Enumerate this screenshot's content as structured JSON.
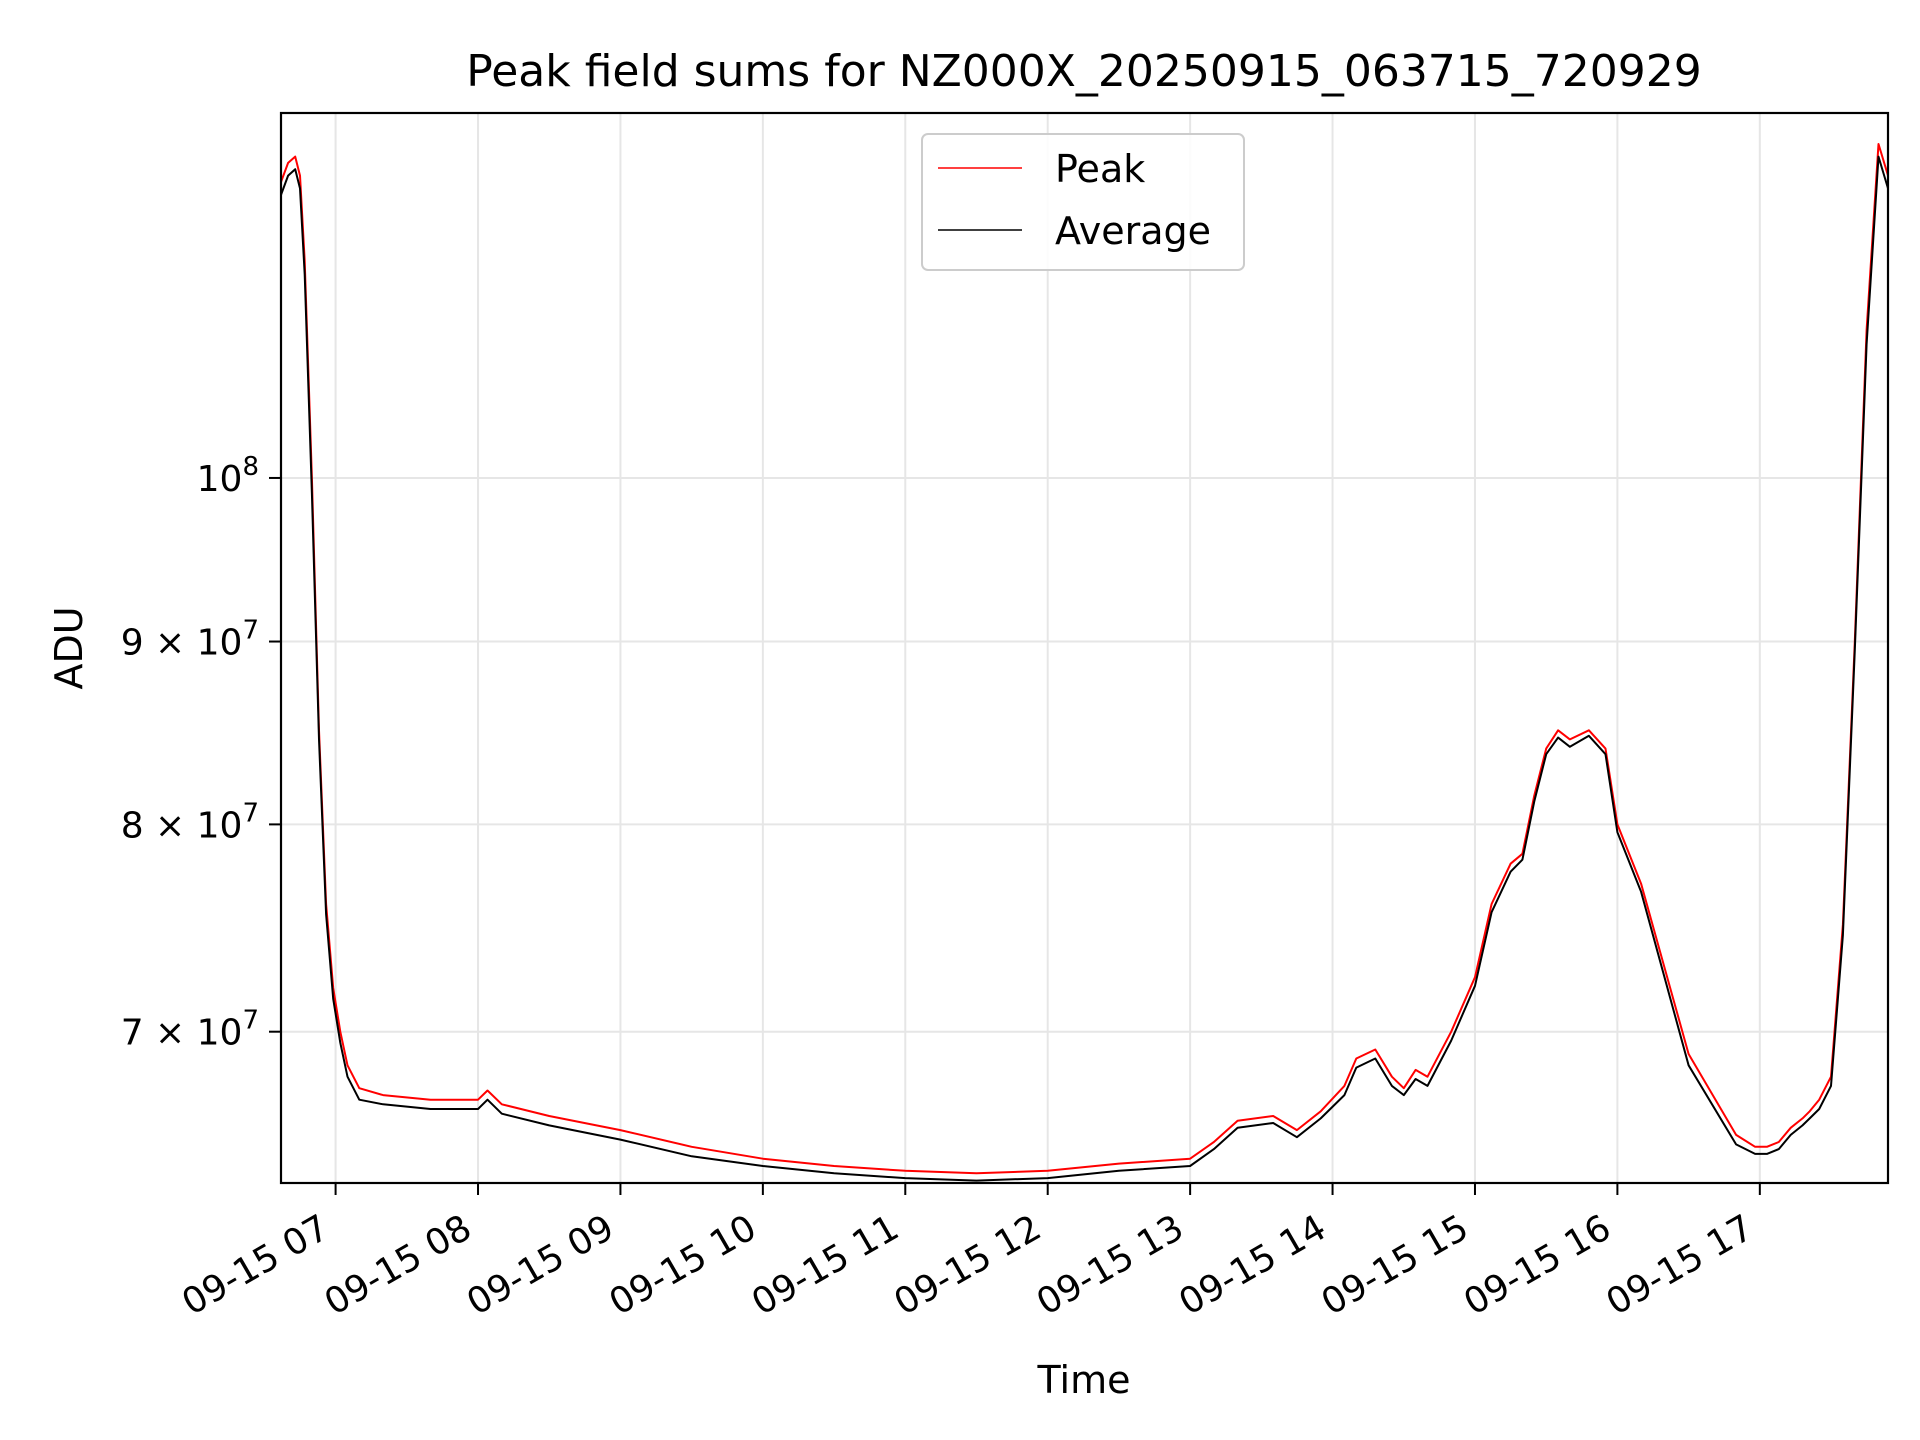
{
  "chart_data": {
    "type": "line",
    "title": "Peak field sums for NZ000X_20250915_063715_720929",
    "xlabel": "Time",
    "ylabel": "ADU",
    "yscale": "log",
    "xlim": [
      "2025-09-15 06:37",
      "2025-09-15 17:54"
    ],
    "ylim": [
      63500000.0,
      126500000.0
    ],
    "grid": true,
    "legend_position": "top-center",
    "x_tick_labels": [
      "09-15 07",
      "09-15 08",
      "09-15 09",
      "09-15 10",
      "09-15 11",
      "09-15 12",
      "09-15 13",
      "09-15 14",
      "09-15 15",
      "09-15 16",
      "09-15 17"
    ],
    "y_tick_labels": [
      {
        "label": "10",
        "exp": "8",
        "value": 100000000.0
      },
      {
        "label": "9 × 10",
        "exp": "7",
        "value": 90000000.0
      },
      {
        "label": "8 × 10",
        "exp": "7",
        "value": 80000000.0
      },
      {
        "label": "7 × 10",
        "exp": "7",
        "value": 70000000.0
      }
    ],
    "series": [
      {
        "name": "Peak",
        "color": "#ff0000",
        "x": [
          "2025-09-15 06:37",
          "2025-09-15 06:40",
          "2025-09-15 06:43",
          "2025-09-15 06:45",
          "2025-09-15 06:47",
          "2025-09-15 06:50",
          "2025-09-15 06:53",
          "2025-09-15 06:56",
          "2025-09-15 06:59",
          "2025-09-15 07:02",
          "2025-09-15 07:05",
          "2025-09-15 07:10",
          "2025-09-15 07:20",
          "2025-09-15 07:40",
          "2025-09-15 08:00",
          "2025-09-15 08:04",
          "2025-09-15 08:10",
          "2025-09-15 08:30",
          "2025-09-15 09:00",
          "2025-09-15 09:30",
          "2025-09-15 10:00",
          "2025-09-15 10:30",
          "2025-09-15 11:00",
          "2025-09-15 11:30",
          "2025-09-15 12:00",
          "2025-09-15 12:30",
          "2025-09-15 13:00",
          "2025-09-15 13:10",
          "2025-09-15 13:20",
          "2025-09-15 13:35",
          "2025-09-15 13:45",
          "2025-09-15 13:55",
          "2025-09-15 14:05",
          "2025-09-15 14:10",
          "2025-09-15 14:18",
          "2025-09-15 14:25",
          "2025-09-15 14:30",
          "2025-09-15 14:35",
          "2025-09-15 14:40",
          "2025-09-15 14:50",
          "2025-09-15 15:00",
          "2025-09-15 15:07",
          "2025-09-15 15:15",
          "2025-09-15 15:20",
          "2025-09-15 15:25",
          "2025-09-15 15:30",
          "2025-09-15 15:35",
          "2025-09-15 15:40",
          "2025-09-15 15:48",
          "2025-09-15 15:55",
          "2025-09-15 16:00",
          "2025-09-15 16:10",
          "2025-09-15 16:30",
          "2025-09-15 16:50",
          "2025-09-15 16:58",
          "2025-09-15 17:03",
          "2025-09-15 17:08",
          "2025-09-15 17:13",
          "2025-09-15 17:18",
          "2025-09-15 17:21",
          "2025-09-15 17:25",
          "2025-09-15 17:30",
          "2025-09-15 17:35",
          "2025-09-15 17:40",
          "2025-09-15 17:45",
          "2025-09-15 17:50",
          "2025-09-15 17:54"
        ],
        "y": [
          121000000.0,
          122500000.0,
          123000000.0,
          121500000.0,
          115000000.0,
          100000000.0,
          85000000.0,
          76000000.0,
          72000000.0,
          70000000.0,
          68500000.0,
          67500000.0,
          67200000.0,
          67000000.0,
          67000000.0,
          67400000.0,
          66800000.0,
          66300000.0,
          65700000.0,
          65000000.0,
          64500000.0,
          64200000.0,
          64000000.0,
          63900000.0,
          64000000.0,
          64300000.0,
          64500000.0,
          65200000.0,
          66100000.0,
          66300000.0,
          65700000.0,
          66500000.0,
          67600000.0,
          68800000.0,
          69200000.0,
          68000000.0,
          67500000.0,
          68300000.0,
          68000000.0,
          70000000.0,
          72500000.0,
          76000000.0,
          78000000.0,
          78500000.0,
          81500000.0,
          84000000.0,
          85000000.0,
          84500000.0,
          85000000.0,
          84000000.0,
          80000000.0,
          77000000.0,
          69000000.0,
          65500000.0,
          65000000.0,
          65000000.0,
          65200000.0,
          65800000.0,
          66200000.0,
          66500000.0,
          67000000.0,
          68000000.0,
          75000000.0,
          90000000.0,
          110000000.0,
          124000000.0,
          121500000.0
        ]
      },
      {
        "name": "Average",
        "color": "#000000",
        "x": [
          "2025-09-15 06:37",
          "2025-09-15 06:40",
          "2025-09-15 06:43",
          "2025-09-15 06:45",
          "2025-09-15 06:47",
          "2025-09-15 06:50",
          "2025-09-15 06:53",
          "2025-09-15 06:56",
          "2025-09-15 06:59",
          "2025-09-15 07:02",
          "2025-09-15 07:05",
          "2025-09-15 07:10",
          "2025-09-15 07:20",
          "2025-09-15 07:40",
          "2025-09-15 08:00",
          "2025-09-15 08:04",
          "2025-09-15 08:10",
          "2025-09-15 08:30",
          "2025-09-15 09:00",
          "2025-09-15 09:30",
          "2025-09-15 10:00",
          "2025-09-15 10:30",
          "2025-09-15 11:00",
          "2025-09-15 11:30",
          "2025-09-15 12:00",
          "2025-09-15 12:30",
          "2025-09-15 13:00",
          "2025-09-15 13:10",
          "2025-09-15 13:20",
          "2025-09-15 13:35",
          "2025-09-15 13:45",
          "2025-09-15 13:55",
          "2025-09-15 14:05",
          "2025-09-15 14:10",
          "2025-09-15 14:18",
          "2025-09-15 14:25",
          "2025-09-15 14:30",
          "2025-09-15 14:35",
          "2025-09-15 14:40",
          "2025-09-15 14:50",
          "2025-09-15 15:00",
          "2025-09-15 15:07",
          "2025-09-15 15:15",
          "2025-09-15 15:20",
          "2025-09-15 15:25",
          "2025-09-15 15:30",
          "2025-09-15 15:35",
          "2025-09-15 15:40",
          "2025-09-15 15:48",
          "2025-09-15 15:55",
          "2025-09-15 16:00",
          "2025-09-15 16:10",
          "2025-09-15 16:30",
          "2025-09-15 16:50",
          "2025-09-15 16:58",
          "2025-09-15 17:03",
          "2025-09-15 17:08",
          "2025-09-15 17:13",
          "2025-09-15 17:18",
          "2025-09-15 17:21",
          "2025-09-15 17:25",
          "2025-09-15 17:30",
          "2025-09-15 17:35",
          "2025-09-15 17:40",
          "2025-09-15 17:45",
          "2025-09-15 17:50",
          "2025-09-15 17:54"
        ],
        "y": [
          120000000.0,
          121500000.0,
          122000000.0,
          120500000.0,
          114000000.0,
          99000000.0,
          84500000.0,
          75500000.0,
          71500000.0,
          69500000.0,
          68000000.0,
          67000000.0,
          66800000.0,
          66600000.0,
          66600000.0,
          67000000.0,
          66400000.0,
          65900000.0,
          65300000.0,
          64600000.0,
          64200000.0,
          63900000.0,
          63700000.0,
          63600000.0,
          63700000.0,
          64000000.0,
          64200000.0,
          64900000.0,
          65800000.0,
          66000000.0,
          65400000.0,
          66200000.0,
          67200000.0,
          68400000.0,
          68800000.0,
          67600000.0,
          67200000.0,
          67900000.0,
          67600000.0,
          69600000.0,
          72100000.0,
          75600000.0,
          77600000.0,
          78200000.0,
          81200000.0,
          83700000.0,
          84600000.0,
          84100000.0,
          84700000.0,
          83700000.0,
          79600000.0,
          76600000.0,
          68500000.0,
          65100000.0,
          64700000.0,
          64700000.0,
          64900000.0,
          65500000.0,
          65900000.0,
          66200000.0,
          66600000.0,
          67600000.0,
          74500000.0,
          89500000.0,
          109000000.0,
          123000000.0,
          120500000.0
        ]
      }
    ]
  }
}
